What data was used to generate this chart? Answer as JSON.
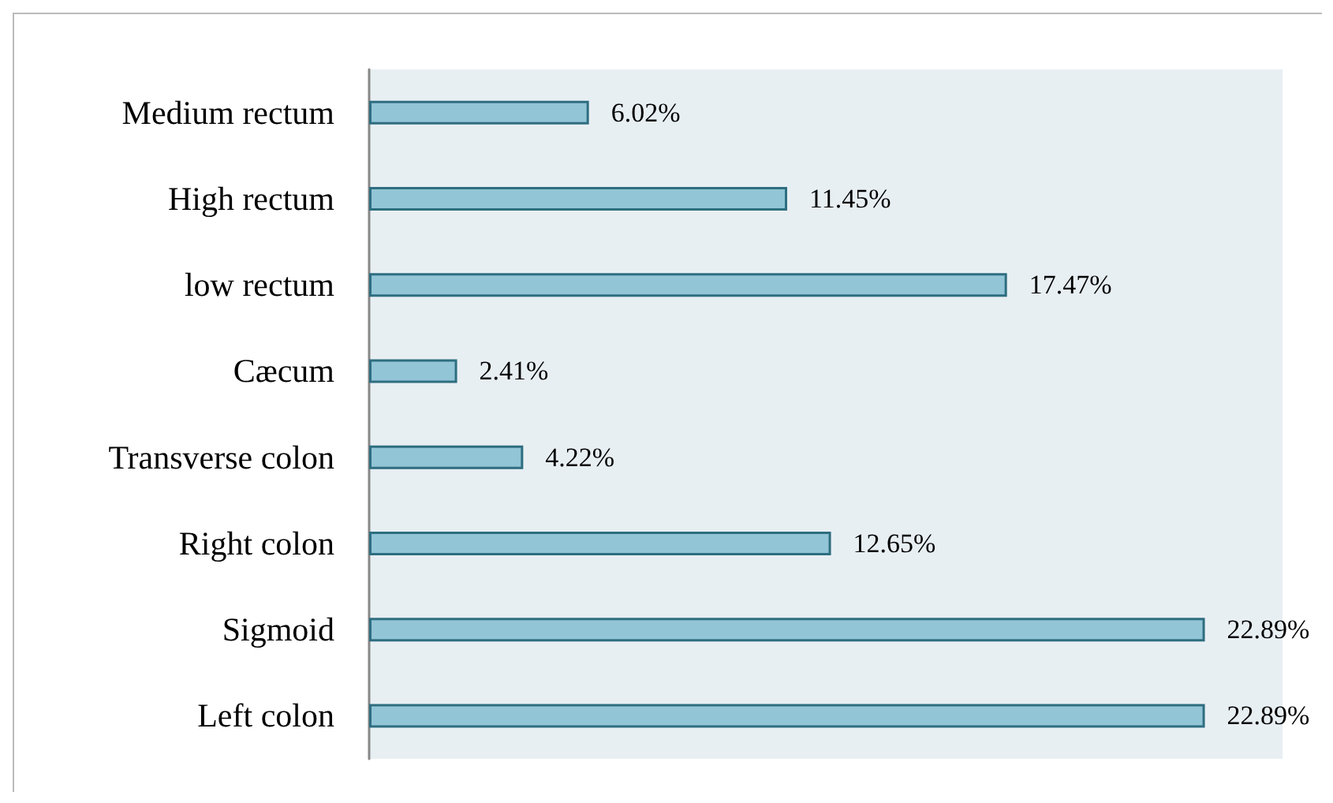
{
  "chart_data": {
    "type": "bar",
    "orientation": "horizontal",
    "categories": [
      "Medium rectum",
      "High rectum",
      "low rectum",
      "Cæcum",
      "Transverse colon",
      "Right colon",
      "Sigmoid",
      "Left colon"
    ],
    "values": [
      6.02,
      11.45,
      17.47,
      2.41,
      4.22,
      12.65,
      22.89,
      22.89
    ],
    "value_labels": [
      "6.02%",
      "11.45%",
      "17.47%",
      "2.41%",
      "4.22%",
      "12.65%",
      "22.89%",
      "22.89%"
    ],
    "color": "#92c5d6"
  }
}
